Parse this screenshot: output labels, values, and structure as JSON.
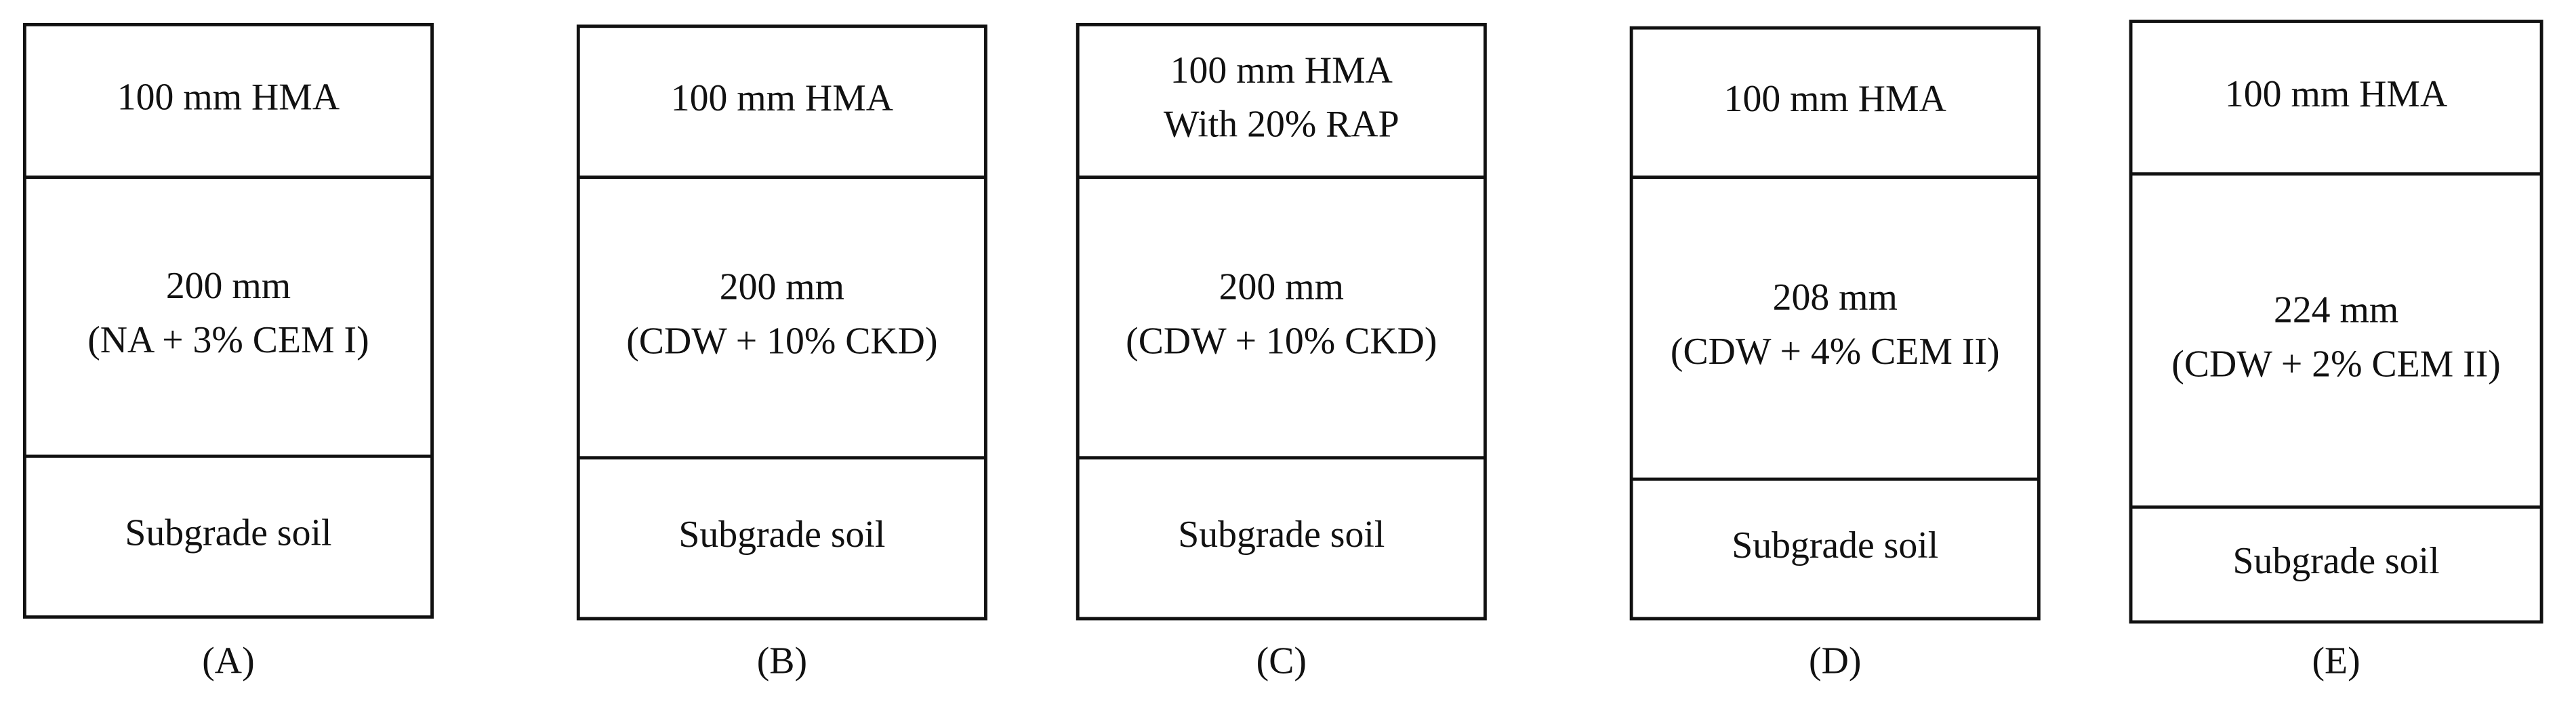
{
  "panels": [
    {
      "label": "(A)",
      "layers": [
        {
          "lines": [
            "100 mm HMA"
          ]
        },
        {
          "lines": [
            "200 mm",
            "(NA + 3% CEM I)"
          ]
        },
        {
          "lines": [
            "Subgrade soil"
          ]
        }
      ]
    },
    {
      "label": "(B)",
      "layers": [
        {
          "lines": [
            "100 mm HMA"
          ]
        },
        {
          "lines": [
            "200 mm",
            "(CDW + 10% CKD)"
          ]
        },
        {
          "lines": [
            "Subgrade soil"
          ]
        }
      ]
    },
    {
      "label": "(C)",
      "layers": [
        {
          "lines": [
            "100 mm HMA",
            "With 20% RAP"
          ]
        },
        {
          "lines": [
            "200 mm",
            "(CDW + 10% CKD)"
          ]
        },
        {
          "lines": [
            "Subgrade soil"
          ]
        }
      ]
    },
    {
      "label": "(D)",
      "layers": [
        {
          "lines": [
            "100 mm HMA"
          ]
        },
        {
          "lines": [
            "208 mm",
            "(CDW + 4% CEM II)"
          ]
        },
        {
          "lines": [
            "Subgrade soil"
          ]
        }
      ]
    },
    {
      "label": "(E)",
      "layers": [
        {
          "lines": [
            "100 mm HMA"
          ]
        },
        {
          "lines": [
            "224 mm",
            "(CDW + 2% CEM II)"
          ]
        },
        {
          "lines": [
            "Subgrade soil"
          ]
        }
      ]
    }
  ]
}
